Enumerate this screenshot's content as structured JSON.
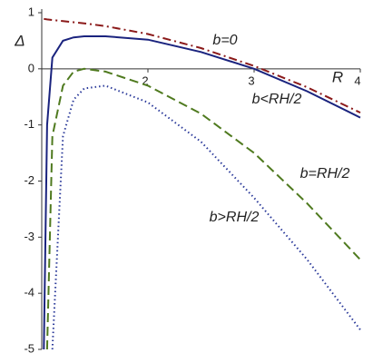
{
  "chart_data": {
    "type": "line",
    "x_label": "R",
    "y_label": "Δ",
    "x": [
      1.02,
      1.05,
      1.1,
      1.2,
      1.3,
      1.4,
      1.6,
      2,
      2.5,
      3,
      3.5,
      4
    ],
    "series": [
      {
        "name": "b=0",
        "color": "#8b1a1a",
        "dash": "dashdot",
        "values": [
          0.89,
          0.88,
          0.87,
          0.85,
          0.83,
          0.81,
          0.76,
          0.62,
          0.37,
          0.05,
          -0.33,
          -0.78
        ]
      },
      {
        "name": "b<RH/2",
        "color": "#1a237e",
        "dash": "solid",
        "values": [
          -5,
          -1,
          0.2,
          0.5,
          0.56,
          0.58,
          0.58,
          0.52,
          0.3,
          0,
          -0.4,
          -0.87
        ]
      },
      {
        "name": "b=RH/2",
        "color": "#4f7a1f",
        "dash": "dashed",
        "values": [
          null,
          -5,
          -1.2,
          -0.3,
          -0.05,
          0,
          -0.05,
          -0.3,
          -0.8,
          -1.5,
          -2.4,
          -3.4
        ]
      },
      {
        "name": "b>RH/2",
        "color": "#2b3a9a",
        "dash": "dotted",
        "values": [
          null,
          null,
          -5,
          -1.2,
          -0.55,
          -0.35,
          -0.3,
          -0.6,
          -1.3,
          -2.3,
          -3.4,
          -4.65
        ]
      }
    ],
    "xlim": [
      1,
      4
    ],
    "xticks": [
      2,
      3,
      4
    ],
    "ylim": [
      -5,
      1
    ],
    "yticks": [
      1,
      0,
      -1,
      -2,
      -3,
      -4,
      -5
    ]
  }
}
